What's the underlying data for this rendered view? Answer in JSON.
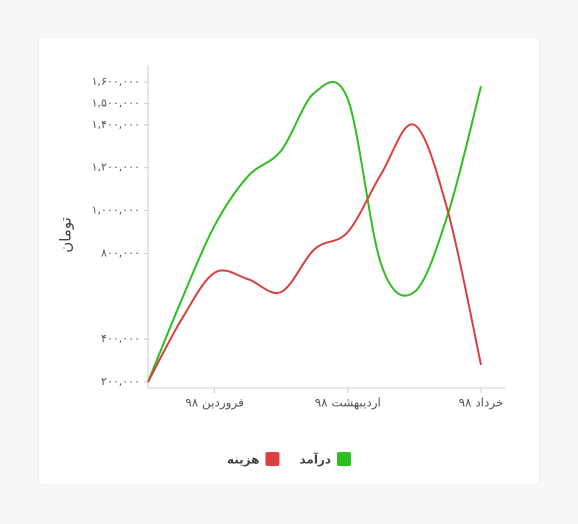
{
  "chart_data": {
    "type": "line",
    "y_label": "تومان",
    "categories": [
      null,
      null,
      "فروردین ۹۸",
      null,
      null,
      null,
      "اردیبهشت ۹۸",
      null,
      null,
      null,
      "خرداد ۹۸"
    ],
    "series": [
      {
        "name": "درآمد",
        "color": "#2dbf1f",
        "values": [
          200000,
          580000,
          930000,
          1160000,
          1280000,
          1550000,
          1520000,
          750000,
          620000,
          980000,
          1580000
        ]
      },
      {
        "name": "هزینه",
        "color": "#d94040",
        "values": [
          200000,
          490000,
          710000,
          680000,
          620000,
          820000,
          900000,
          1170000,
          1400000,
          1000000,
          280000
        ]
      }
    ],
    "ylim": [
      200000,
      1600000
    ],
    "yticks": [
      {
        "value": 200000,
        "label": "۲۰۰,۰۰۰"
      },
      {
        "value": 400000,
        "label": "۴۰۰,۰۰۰"
      },
      {
        "value": 800000,
        "label": "۸۰۰,۰۰۰"
      },
      {
        "value": 1000000,
        "label": "۱,۰۰۰,۰۰۰"
      },
      {
        "value": 1200000,
        "label": "۱,۲۰۰,۰۰۰"
      },
      {
        "value": 1400000,
        "label": "۱,۴۰۰,۰۰۰"
      },
      {
        "value": 1500000,
        "label": "۱,۵۰۰,۰۰۰"
      },
      {
        "value": 1600000,
        "label": "۱,۶۰۰,۰۰۰"
      }
    ]
  }
}
